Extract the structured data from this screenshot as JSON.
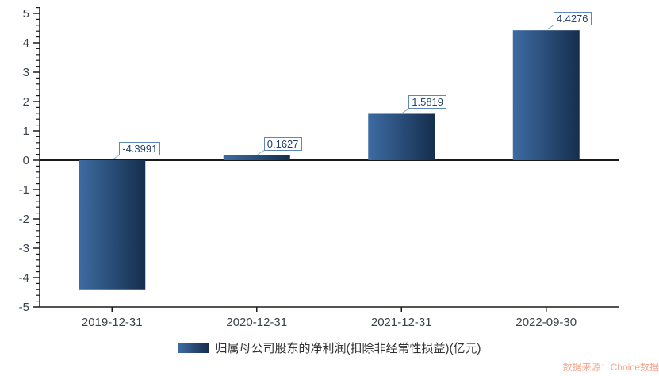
{
  "chart_data": {
    "type": "bar",
    "title": "",
    "xlabel": "",
    "ylabel": "",
    "categories": [
      "2019-12-31",
      "2020-12-31",
      "2021-12-31",
      "2022-09-30"
    ],
    "series": [
      {
        "name": "归属母公司股东的净利润(扣除非经常性损益)(亿元)",
        "values": [
          -4.3991,
          0.1627,
          1.5819,
          4.4276
        ],
        "value_labels": [
          "-4.3991",
          "0.1627",
          "1.5819",
          "4.4276"
        ]
      }
    ],
    "ylim": [
      -5,
      5
    ],
    "y_ticks": [
      -5,
      -4,
      -3,
      -2,
      -1,
      0,
      1,
      2,
      3,
      4,
      5
    ],
    "y_minor_tick_step": 0.2,
    "grid": false,
    "legend_position": "bottom",
    "bar_gradient": [
      "#3d6ca3",
      "#152e4d"
    ]
  },
  "footer": {
    "source_label": "数据来源：Choice数据"
  },
  "colors": {
    "axis": "#1a1a1a",
    "tick_label": "#3a434d",
    "label_border": "#5d88b8",
    "label_text": "#24436b",
    "leader_line": "#8cabcd",
    "legend_text": "#333333",
    "source_text": "#f9a58b",
    "background": "#ffffff"
  }
}
